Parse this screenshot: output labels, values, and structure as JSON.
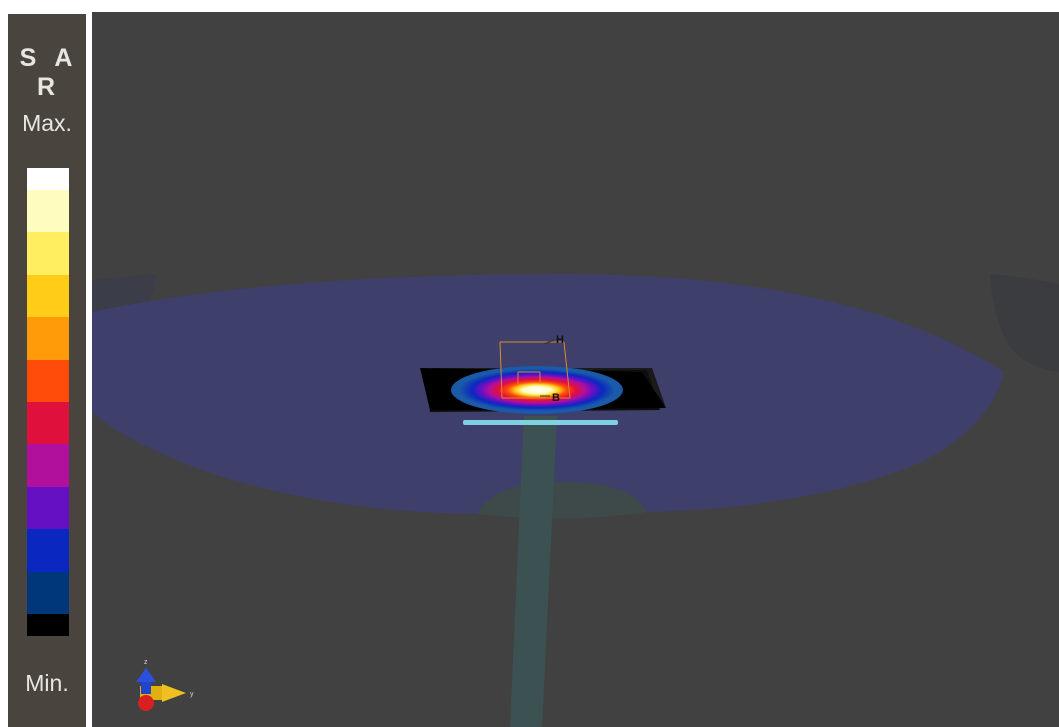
{
  "legend": {
    "title": "S A R",
    "max_label": "Max.",
    "min_label": "Min.",
    "colors": [
      "#ffffff",
      "#fffcc0",
      "#ffee60",
      "#ffcc18",
      "#ff9a08",
      "#ff4c0a",
      "#e0103c",
      "#b0109c",
      "#6610c4",
      "#0a28c0",
      "#00367a",
      "#000000"
    ]
  },
  "viewport": {
    "background": "#414141",
    "labels": {
      "marker_h": "H",
      "marker_b": "B"
    },
    "axes": {
      "z_label": "z",
      "y_label": "y"
    }
  }
}
